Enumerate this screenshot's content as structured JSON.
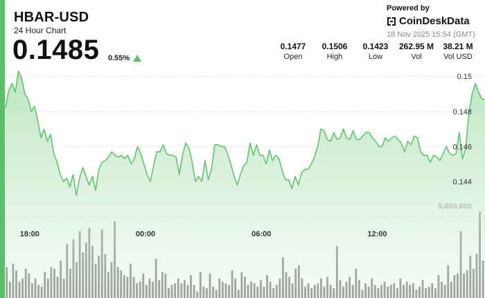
{
  "header": {
    "symbol": "HBAR-USD",
    "subtitle": "24 Hour Chart",
    "price": "0.1485",
    "change": "0.55%",
    "change_direction_icon": "up-triangle-icon"
  },
  "branding": {
    "powered_by": "Powered by",
    "brand_name": "CoinDeskData",
    "brand_icon": "coindesk-logo-icon",
    "timestamp": "18 Nov 2025 15:54 (GMT)"
  },
  "stats": [
    {
      "value": "0.1477",
      "label": "Open"
    },
    {
      "value": "0.1506",
      "label": "High"
    },
    {
      "value": "0.1423",
      "label": "Low"
    },
    {
      "value": "262.95 M",
      "label": "Vol"
    },
    {
      "value": "38.21 M",
      "label": "Vol USD"
    }
  ],
  "colors": {
    "accent": "#5cbf6a",
    "line": "#62c46e",
    "area_top": "#c9ebcc",
    "volume_bar": "#4f4f4f"
  },
  "chart_data": {
    "type": "line",
    "price_axis": {
      "ticks": [
        "0.15",
        "0.148",
        "0.146",
        "0.144"
      ],
      "tick_values": [
        0.15,
        0.148,
        0.146,
        0.144
      ],
      "ylim": [
        0.1425,
        0.1508
      ]
    },
    "x_tick_labels": [
      "18:00",
      "00:00",
      "06:00",
      "12:00"
    ],
    "volume_axis": {
      "tick_label": "5,000,000",
      "tick_value": 5000000,
      "ylim": [
        0,
        8500000
      ]
    },
    "grid": true,
    "price_series": [
      0.1482,
      0.1492,
      0.1496,
      0.1491,
      0.1503,
      0.1499,
      0.149,
      0.1487,
      0.148,
      0.1483,
      0.1475,
      0.1465,
      0.147,
      0.1463,
      0.1467,
      0.1456,
      0.1451,
      0.1444,
      0.144,
      0.1442,
      0.1437,
      0.1444,
      0.1432,
      0.1442,
      0.1448,
      0.1443,
      0.1438,
      0.1443,
      0.1435,
      0.1447,
      0.1451,
      0.1452,
      0.1454,
      0.1457,
      0.1455,
      0.1454,
      0.1455,
      0.1453,
      0.1455,
      0.145,
      0.1453,
      0.146,
      0.1456,
      0.145,
      0.1444,
      0.144,
      0.1449,
      0.1457,
      0.1457,
      0.1461,
      0.1456,
      0.1455,
      0.1455,
      0.1454,
      0.1444,
      0.1455,
      0.1462,
      0.1459,
      0.1451,
      0.144,
      0.1443,
      0.144,
      0.1452,
      0.1441,
      0.1447,
      0.1461,
      0.1461,
      0.146,
      0.146,
      0.1456,
      0.145,
      0.1443,
      0.1438,
      0.1444,
      0.1449,
      0.1451,
      0.1462,
      0.1455,
      0.1461,
      0.1455,
      0.1455,
      0.145,
      0.1458,
      0.1452,
      0.1455,
      0.1453,
      0.1446,
      0.1441,
      0.1441,
      0.1436,
      0.1443,
      0.1438,
      0.1445,
      0.1447,
      0.1447,
      0.145,
      0.1454,
      0.146,
      0.147,
      0.1469,
      0.1464,
      0.1463,
      0.1468,
      0.1464,
      0.1465,
      0.147,
      0.1465,
      0.1464,
      0.1469,
      0.1464,
      0.1464,
      0.1466,
      0.1468,
      0.1468,
      0.1465,
      0.1463,
      0.146,
      0.146,
      0.1465,
      0.1463,
      0.1465,
      0.1466,
      0.1464,
      0.1462,
      0.1457,
      0.1463,
      0.1461,
      0.1466,
      0.1465,
      0.1457,
      0.1455,
      0.1455,
      0.1451,
      0.1455,
      0.1454,
      0.1452,
      0.1456,
      0.146,
      0.1456,
      0.1455,
      0.1456,
      0.1468,
      0.1453,
      0.1459,
      0.1479,
      0.149,
      0.1496,
      0.1491,
      0.1487,
      0.1487
    ],
    "volume_series": [
      1.9,
      1.0,
      2.1,
      1.7,
      1.0,
      1.2,
      1.8,
      1.5,
      0.9,
      1.2,
      0.8,
      0.7,
      1.6,
      1.2,
      1.9,
      1.8,
      1.3,
      2.3,
      1.2,
      3.3,
      1.8,
      3.6,
      2.2,
      4.1,
      2.8,
      3.4,
      4.3,
      3.2,
      2.1,
      2.6,
      4.2,
      2.7,
      1.6,
      2.2,
      4.7,
      1.9,
      1.7,
      1.4,
      1.3,
      2.1,
      1.3,
      0.9,
      1.0,
      1.5,
      0.8,
      1.2,
      1.0,
      2.4,
      1.1,
      1.6,
      1.5,
      0.6,
      0.8,
      0.9,
      1.2,
      0.9,
      1.1,
      0.8,
      1.4,
      0.8,
      0.4,
      1.6,
      0.7,
      0.6,
      1.5,
      0.7,
      0.5,
      1.2,
      1.0,
      0.9,
      0.8,
      1.7,
      1.2,
      0.5,
      1.6,
      1.3,
      0.8,
      1.0,
      0.9,
      0.7,
      1.1,
      0.7,
      1.4,
      1.0,
      0.6,
      0.8,
      1.2,
      2.5,
      1.6,
      1.3,
      0.9,
      1.8,
      2.0,
      1.2,
      0.7,
      0.9,
      0.6,
      0.8,
      0.9,
      1.2,
      0.7,
      1.3,
      0.8,
      0.6,
      3.2,
      1.1,
      0.7,
      1.0,
      1.3,
      0.8,
      1.8,
      1.1,
      0.5,
      0.9,
      0.7,
      1.2,
      0.8,
      0.6,
      0.8,
      1.0,
      0.7,
      0.8,
      0.9,
      0.6,
      1.2,
      0.8,
      1.0,
      0.8,
      0.9,
      0.5,
      0.7,
      1.1,
      0.6,
      0.7,
      0.9,
      0.6,
      1.4,
      1.0,
      0.8,
      2.0,
      1.0,
      1.4,
      1.5,
      4.1,
      1.5,
      1.7,
      2.6,
      1.8,
      2.7,
      5.3,
      2.3
    ]
  }
}
